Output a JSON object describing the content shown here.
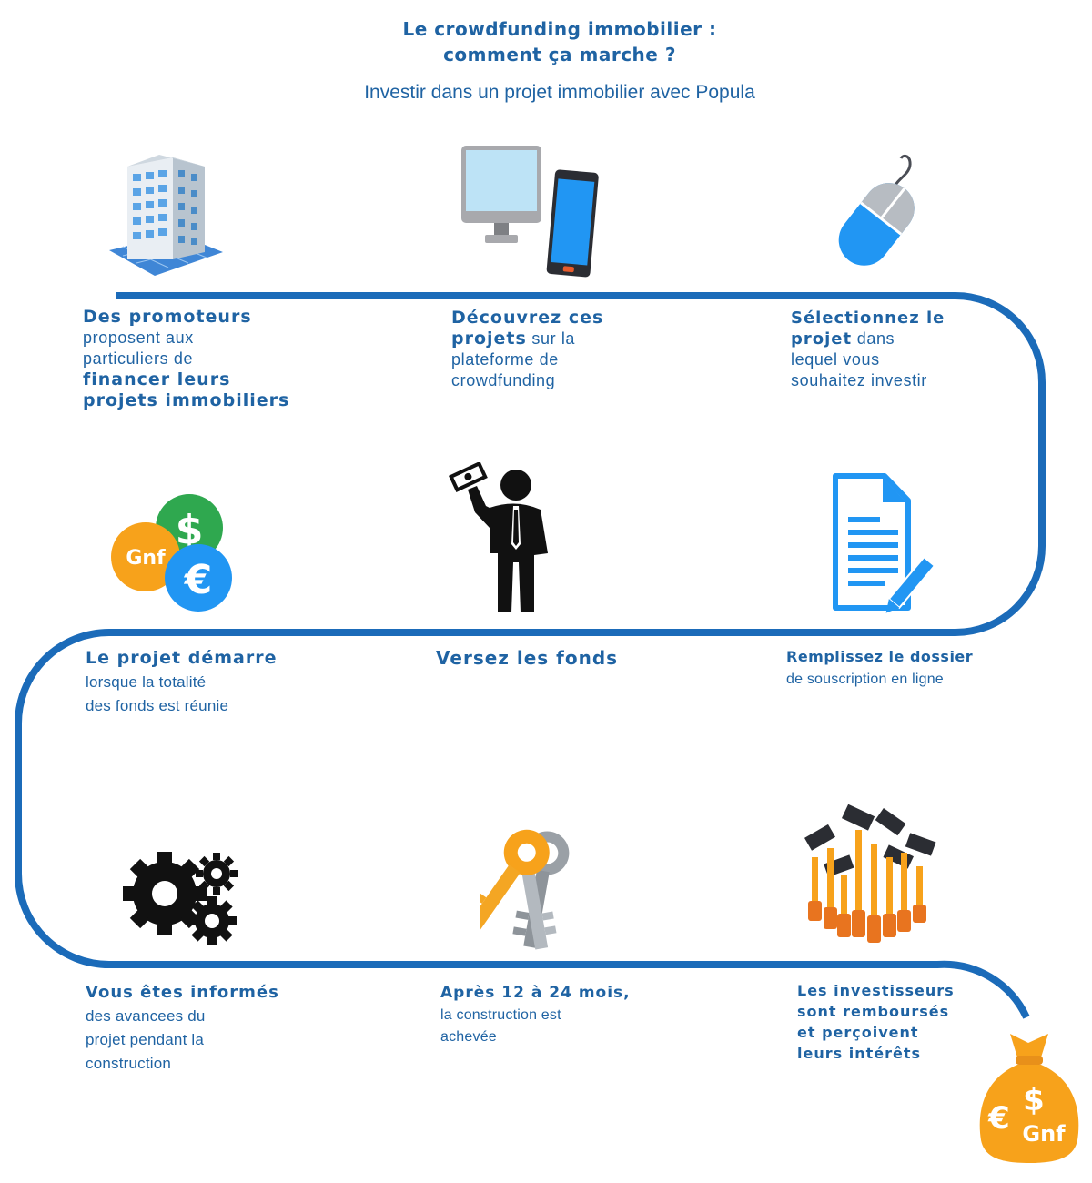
{
  "header": {
    "title_line1": "Le crowdfunding immobilier :",
    "title_line2": "comment ça marche ?",
    "subtitle": "Investir dans un projet immobilier avec Popula"
  },
  "colors": {
    "brand_blue": "#1f63a3",
    "path_blue": "#1b6bb9",
    "orange": "#f7a21b",
    "green": "#2fa84f",
    "icon_blue": "#2196f3"
  },
  "steps": {
    "s1": {
      "b1": "Des promoteurs",
      "t1": "proposent aux",
      "t2": "particuliers de",
      "b2": "financer leurs",
      "b3": "projets immobiliers",
      "icon": "building-icon"
    },
    "s2": {
      "b1": "Découvrez ces",
      "b2": "projets",
      "t1": " sur la",
      "t2": "plateforme de",
      "t3": "crowdfunding",
      "icon": "devices-icon"
    },
    "s3": {
      "b1": "Sélectionnez le",
      "b2": "projet",
      "t1": " dans",
      "t2": "lequel vous",
      "t3": "souhaitez investir",
      "icon": "mouse-icon"
    },
    "s4": {
      "b1": "Remplissez le dossier",
      "t1": "de souscription en ligne",
      "icon": "document-icon"
    },
    "s5": {
      "b1": "Versez les fonds",
      "icon": "investor-icon"
    },
    "s6": {
      "b1": "Le projet démarre",
      "t1": "lorsque la totalité",
      "t2": "des fonds est réunie",
      "icon": "currency-coins-icon"
    },
    "s7": {
      "b1": "Vous êtes informés",
      "t1": "des avancees du",
      "t2": "projet pendant la",
      "t3": "construction",
      "icon": "gears-icon"
    },
    "s8": {
      "b1": "Après 12 à 24 mois,",
      "t1": "la construction est",
      "t2": "achevée",
      "icon": "keys-icon"
    },
    "s9": {
      "b1": "Les investisseurs",
      "b2": "sont remboursés",
      "b3": "et perçoivent",
      "b4": "leurs intérêts",
      "icon": "money-hands-icon"
    }
  },
  "coins": {
    "gnf": "Gnf",
    "dollar": "$",
    "euro": "€"
  },
  "money_bag": {
    "euro": "€",
    "dollar": "$",
    "gnf": "Gnf"
  }
}
